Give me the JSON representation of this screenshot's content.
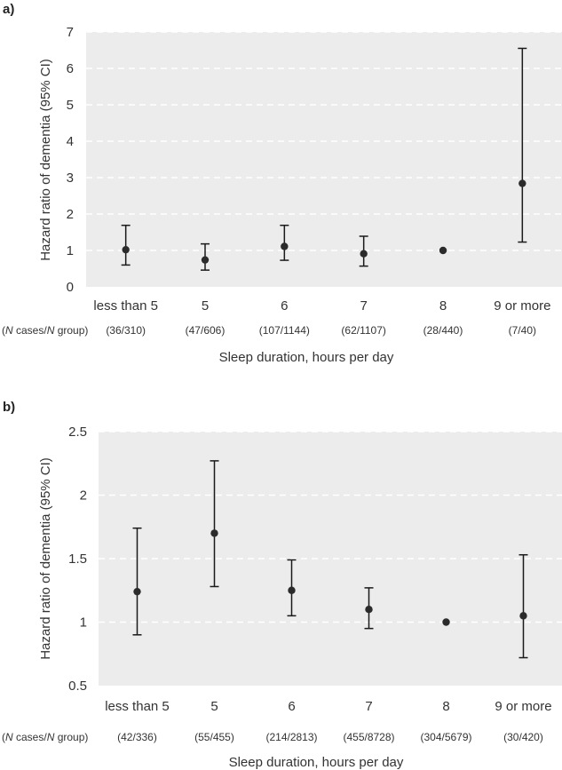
{
  "chart_data": [
    {
      "panel": "a)",
      "type": "scatter",
      "ylabel": "Hazard ratio of dementia (95% CI)",
      "xlabel": "Sleep duration, hours per day",
      "ylim": [
        0,
        7
      ],
      "yticks": [
        "0",
        "1",
        "2",
        "3",
        "4",
        "5",
        "6",
        "7"
      ],
      "ytick_values": [
        0,
        1,
        2,
        3,
        4,
        5,
        6,
        7
      ],
      "grid": "dashed horizontal",
      "counts_header": {
        "n1": "N",
        "mid": " cases/",
        "n2": "N",
        "tail": " group)"
      },
      "categories": [
        "less than 5",
        "5",
        "6",
        "7",
        "8",
        "9 or more"
      ],
      "counts": [
        "(36/310)",
        "(47/606)",
        "(107/1144)",
        "(62/1107)",
        "(28/440)",
        "(7/40)"
      ],
      "estimates": [
        1.02,
        0.74,
        1.11,
        0.91,
        1.0,
        2.84
      ],
      "ci_lower": [
        0.6,
        0.46,
        0.73,
        0.57,
        null,
        1.23
      ],
      "ci_upper": [
        1.69,
        1.18,
        1.69,
        1.39,
        null,
        6.55
      ]
    },
    {
      "panel": "b)",
      "type": "scatter",
      "ylabel": "Hazard ratio of dementia (95% CI)",
      "xlabel": "Sleep duration, hours per day",
      "ylim": [
        0.5,
        2.5
      ],
      "yticks": [
        "0.5",
        "1",
        "1.5",
        "2",
        "2.5"
      ],
      "ytick_values": [
        0.5,
        1,
        1.5,
        2,
        2.5
      ],
      "grid": "dashed horizontal",
      "counts_header": {
        "n1": "N",
        "mid": " cases/",
        "n2": "N",
        "tail": " group)"
      },
      "categories": [
        "less than 5",
        "5",
        "6",
        "7",
        "8",
        "9 or more"
      ],
      "counts": [
        "(42/336)",
        "(55/455)",
        "(214/2813)",
        "(455/8728)",
        "(304/5679)",
        "(30/420)"
      ],
      "estimates": [
        1.24,
        1.7,
        1.25,
        1.1,
        1.0,
        1.05
      ],
      "ci_lower": [
        0.9,
        1.28,
        1.05,
        0.95,
        null,
        0.72
      ],
      "ci_upper": [
        1.74,
        2.27,
        1.49,
        1.27,
        null,
        1.53
      ]
    }
  ]
}
